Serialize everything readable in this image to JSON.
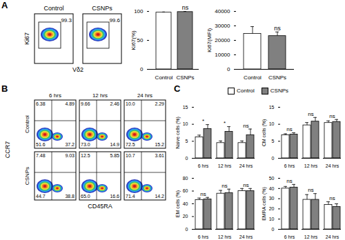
{
  "panels": [
    "A",
    "B",
    "C"
  ],
  "flow_plots": {
    "A": {
      "x_label": "Vδ2",
      "y_label": "Ki67",
      "groups": [
        "Control",
        "CSNPs"
      ],
      "gates": [
        "99.3",
        "99.6"
      ]
    },
    "B": {
      "x_label": "CD45RA",
      "y_label": "CCR7",
      "columns": [
        "6 hrs",
        "12 hrs",
        "24 hrs"
      ],
      "rows": [
        "Control",
        "CSNPs"
      ],
      "quadrants": [
        [
          [
            "6.38",
            "4.89",
            "51.6",
            "37.2"
          ],
          [
            "9.66",
            "2.46",
            "73.0",
            "14.9"
          ],
          [
            "10.0",
            "2.29",
            "72.5",
            "15.2"
          ]
        ],
        [
          [
            "7.48",
            "9.03",
            "44.7",
            "38.8"
          ],
          [
            "12.5",
            "5.85",
            "65.0",
            "16.6"
          ],
          [
            "10.7",
            "3.61",
            "71.4",
            "14.2"
          ]
        ]
      ]
    }
  },
  "chart_data": [
    {
      "type": "bar",
      "y_label": "Ki67(%)",
      "categories": [
        "Control",
        "CSNPs"
      ],
      "values": [
        98,
        99
      ],
      "errors": [
        1,
        1
      ],
      "colors": [
        "#ffffff",
        "#808080"
      ],
      "ylim": [
        0,
        100
      ],
      "yticks": [
        0,
        50,
        100
      ],
      "annotations": [
        null,
        "ns"
      ]
    },
    {
      "type": "bar",
      "y_label": "Ki67(MFI)",
      "categories": [
        "Control",
        "CSNPs"
      ],
      "values": [
        24500,
        23000
      ],
      "errors": [
        5000,
        2800
      ],
      "colors": [
        "#ffffff",
        "#808080"
      ],
      "ylim": [
        0,
        40000
      ],
      "yticks": [
        0,
        10000,
        20000,
        30000,
        40000
      ],
      "annotations": [
        null,
        "ns"
      ]
    },
    {
      "type": "bar",
      "y_label": "Naive cells (%)",
      "categories": [
        "6 hrs",
        "12 hrs",
        "24 hrs"
      ],
      "legend": "top",
      "series": [
        {
          "name": "Control",
          "color": "#ffffff",
          "values": [
            6.2,
            4.5,
            4.5
          ],
          "errors": [
            0.6,
            0.6,
            0.6
          ]
        },
        {
          "name": "CSNPs",
          "color": "#808080",
          "values": [
            8.6,
            7.8,
            6.8
          ],
          "errors": [
            1.3,
            1.5,
            1.8
          ]
        }
      ],
      "ylim": [
        0,
        15
      ],
      "yticks": [
        0,
        5,
        10,
        15
      ],
      "annotations": [
        "*",
        "*",
        "ns"
      ]
    },
    {
      "type": "bar",
      "y_label": "CM cells (%)",
      "categories": [
        "6 hrs",
        "12 hrs",
        "24 hrs"
      ],
      "series": [
        {
          "name": "Control",
          "color": "#ffffff",
          "values": [
            6.8,
            9.7,
            10.4
          ],
          "errors": [
            0.4,
            0.8,
            0.6
          ]
        },
        {
          "name": "CSNPs",
          "color": "#808080",
          "values": [
            7.0,
            10.8,
            10.7
          ],
          "errors": [
            0.5,
            1.2,
            0.7
          ]
        }
      ],
      "ylim": [
        0,
        15
      ],
      "yticks": [
        0,
        5,
        10,
        15
      ],
      "annotations": [
        "ns",
        "ns",
        "ns"
      ]
    },
    {
      "type": "bar",
      "y_label": "EM cells (%)",
      "categories": [
        "6 hrs",
        "12 hrs",
        "24 hrs"
      ],
      "series": [
        {
          "name": "Control",
          "color": "#ffffff",
          "values": [
            46,
            56,
            60
          ],
          "errors": [
            3,
            5,
            4
          ]
        },
        {
          "name": "CSNPs",
          "color": "#808080",
          "values": [
            47,
            57,
            60
          ],
          "errors": [
            3,
            6,
            4
          ]
        }
      ],
      "ylim": [
        0,
        80
      ],
      "yticks": [
        0,
        20,
        40,
        60,
        80
      ],
      "annotations": [
        "ns",
        "ns",
        "ns"
      ]
    },
    {
      "type": "bar",
      "y_label": "EMRA cells (%)",
      "categories": [
        "6 hrs",
        "12 hrs",
        "24 hrs"
      ],
      "series": [
        {
          "name": "Control",
          "color": "#ffffff",
          "values": [
            40,
            29,
            24
          ],
          "errors": [
            2,
            5,
            3
          ]
        },
        {
          "name": "CSNPs",
          "color": "#808080",
          "values": [
            41,
            29,
            22
          ],
          "errors": [
            3,
            6,
            3
          ]
        }
      ],
      "ylim": [
        0,
        50
      ],
      "yticks": [
        0,
        10,
        20,
        30,
        40,
        50
      ],
      "annotations": [
        "ns",
        "ns",
        "ns"
      ]
    }
  ]
}
